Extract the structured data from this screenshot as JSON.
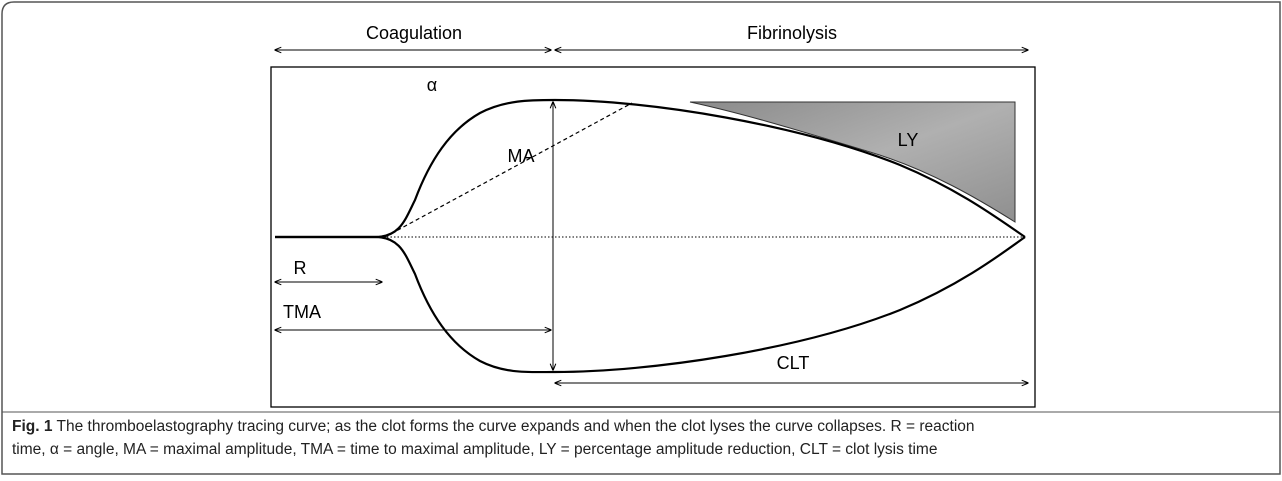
{
  "figure": {
    "phases": {
      "coagulation": "Coagulation",
      "fibrinolysis": "Fibrinolysis"
    },
    "labels": {
      "alpha": "α",
      "ma": "MA",
      "ly": "LY",
      "r": "R",
      "tma": "TMA",
      "clt": "CLT"
    },
    "caption": {
      "label": "Fig. 1",
      "line1": "The thromboelastography tracing curve; as the clot forms the curve expands and when the clot lyses the curve collapses. R = reaction",
      "line2": "time, α = angle, MA = maximal amplitude, TMA = time to maximal amplitude, LY = percentage amplitude reduction, CLT = clot lysis time"
    }
  }
}
